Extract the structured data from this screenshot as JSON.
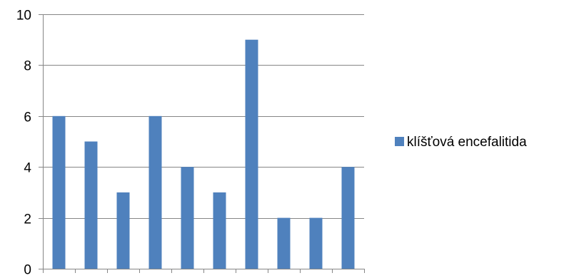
{
  "chart_data": {
    "type": "bar",
    "title": "",
    "xlabel": "",
    "ylabel": "",
    "categories": [
      "",
      "",
      "",
      "",
      "",
      "",
      "",
      "",
      "",
      ""
    ],
    "series": [
      {
        "name": "klíšťová encefalitida",
        "color": "#4f81bd",
        "values": [
          6,
          5,
          3,
          6,
          4,
          3,
          9,
          2,
          2,
          4
        ]
      }
    ],
    "ylim": [
      0,
      10
    ],
    "yticks": [
      0,
      2,
      4,
      6,
      8,
      10
    ],
    "ytick_labels": [
      "0",
      "2",
      "4",
      "6",
      "8",
      "10"
    ],
    "grid": true,
    "legend_position": "right",
    "gridline_color": "#868686",
    "axis_color": "#868686"
  }
}
